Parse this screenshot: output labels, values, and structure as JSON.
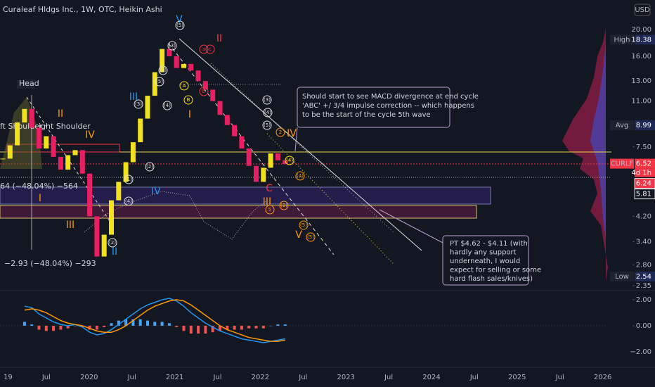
{
  "header": {
    "title": "Curaleaf Hldgs Inc., 1W, OTC, Heikin Ashi",
    "currency": "USD"
  },
  "chart_data": {
    "type": "candlestick",
    "log_scale": true,
    "ylim": [
      2.27,
      25.6
    ],
    "yticks": [
      {
        "value": 20,
        "label": "20.00"
      },
      {
        "value": 16,
        "label": "16.00"
      },
      {
        "value": 13,
        "label": "13.00"
      },
      {
        "value": 11,
        "label": "11.00"
      },
      {
        "value": 7.5,
        "label": "7.50"
      },
      {
        "value": 4.2,
        "label": "4.20"
      },
      {
        "value": 3.4,
        "label": "3.40"
      },
      {
        "value": 2.8,
        "label": "2.80"
      },
      {
        "value": 2.35,
        "label": "2.35"
      }
    ],
    "x_labels": [
      "19",
      "Jul",
      "2020",
      "Jul",
      "2021",
      "Jul",
      "2022",
      "Jul",
      "2023",
      "Jul",
      "2024",
      "Jul",
      "2025",
      "Jul",
      "2026"
    ],
    "closes": [
      6.8,
      7.6,
      9.2,
      10.3,
      8.8,
      7.4,
      8.2,
      6.9,
      6.2,
      7.0,
      7.3,
      6.0,
      4.2,
      3.0,
      3.6,
      4.8,
      5.6,
      6.6,
      7.8,
      9.5,
      11.5,
      14.0,
      17.0,
      16.0,
      14.5,
      15.0,
      14.2,
      13.0,
      12.1,
      11.0,
      9.8,
      9.0,
      8.2,
      7.4,
      6.4,
      5.6,
      6.3,
      7.1,
      6.7,
      6.5
    ],
    "up_color": "#f2e21d",
    "down_color": "#e91e63",
    "price_labels": [
      {
        "name": "High",
        "value": 18.38
      },
      {
        "name": "Avg",
        "value": 8.99
      },
      {
        "name": "CURLF",
        "value": 6.52,
        "countdown": "4d 1h"
      },
      {
        "value": 6.24
      },
      {
        "value": 5.81
      },
      {
        "name": "Low",
        "value": 2.54
      }
    ],
    "macd": {
      "ylim": [
        -3.08,
        2.59
      ],
      "yticks": [
        {
          "value": 2,
          "label": "2.00"
        },
        {
          "value": 0,
          "label": "0.00"
        },
        {
          "value": -2,
          "label": "−2.00"
        }
      ],
      "macd_color": "#2196f3",
      "signal_color": "#ff9800",
      "macd": [
        null,
        null,
        null,
        1.5,
        1.4,
        0.9,
        0.6,
        0.3,
        0.1,
        0.0,
        0.1,
        -0.1,
        -0.5,
        -0.7,
        -0.6,
        -0.3,
        0.1,
        0.5,
        0.9,
        1.3,
        1.6,
        1.8,
        2.0,
        2.1,
        1.9,
        1.5,
        1.0,
        0.6,
        0.2,
        -0.1,
        -0.4,
        -0.6,
        -0.8,
        -1.0,
        -1.1,
        -1.2,
        -1.3,
        -1.2,
        -1.1,
        -1.0
      ],
      "signal": [
        null,
        null,
        null,
        1.2,
        1.3,
        1.2,
        1.0,
        0.7,
        0.4,
        0.2,
        0.1,
        0.0,
        -0.2,
        -0.4,
        -0.5,
        -0.5,
        -0.3,
        0.0,
        0.4,
        0.8,
        1.2,
        1.5,
        1.7,
        1.9,
        2.0,
        1.9,
        1.6,
        1.2,
        0.8,
        0.4,
        0.0,
        -0.3,
        -0.5,
        -0.7,
        -0.9,
        -1.0,
        -1.1,
        -1.2,
        -1.2,
        -1.1
      ],
      "histogram": [
        null,
        null,
        null,
        0.3,
        0.1,
        -0.3,
        -0.4,
        -0.4,
        -0.3,
        -0.2,
        0.0,
        -0.1,
        -0.3,
        -0.3,
        -0.1,
        0.2,
        0.4,
        0.5,
        0.5,
        0.5,
        0.4,
        0.3,
        0.3,
        0.2,
        -0.1,
        -0.4,
        -0.6,
        -0.6,
        -0.6,
        -0.5,
        -0.4,
        -0.3,
        -0.3,
        -0.3,
        -0.2,
        -0.2,
        -0.2,
        0.0,
        0.1,
        0.1
      ]
    }
  },
  "annotations": {
    "head": "Head",
    "left_shoulder": "ft Shoulder",
    "right_shoulder": "ight Shoulder",
    "measure_top": "64 (−48.04%) −564",
    "measure_bottom": "−2.93 (−48.04%) −293",
    "note_1": [
      "Should start to see MACD divergence at end cycle",
      "'ABC' +/ 3/4 impulse correction -- which happens",
      "to be the start of the cycle 5th wave"
    ],
    "note_2": [
      "PT $4.62 - $4.11 (with",
      "hardly any support",
      "underneath, I would",
      "expect for selling or some",
      "hard flash sales/knives)"
    ],
    "wave_labels": [
      {
        "text": "V",
        "color": "#2196f3"
      },
      {
        "text": "(5)",
        "color": "#e0e0e0"
      },
      {
        "text": "II",
        "color": "#f23645"
      },
      {
        "text": "III",
        "color": "#2196f3"
      },
      {
        "text": "IV",
        "color": "#ff9800"
      },
      {
        "text": "II",
        "color": "#ff9800"
      },
      {
        "text": "I",
        "color": "#ff9800"
      },
      {
        "text": "III",
        "color": "#ff9800"
      },
      {
        "text": "IV",
        "color": "#2196f3"
      },
      {
        "text": "II",
        "color": "#2196f3"
      },
      {
        "text": "IV",
        "color": "#ff9800"
      },
      {
        "text": "V",
        "color": "#ff9800"
      },
      {
        "text": "III",
        "color": "#ff9800"
      },
      {
        "text": "C",
        "color": "#f23645"
      },
      {
        "text": "I",
        "color": "#ff9800"
      },
      {
        "text": "(3)",
        "color": "#e0e0e0"
      },
      {
        "text": "(1)",
        "color": "#e0e0e0"
      },
      {
        "text": "(5)",
        "color": "#e0e0e0"
      },
      {
        "text": "(4)",
        "color": "#e0e0e0"
      },
      {
        "text": "(2)",
        "color": "#e0e0e0"
      },
      {
        "text": "(3)",
        "color": "#e0e0e0"
      },
      {
        "text": "(1)",
        "color": "#e0e0e0"
      },
      {
        "text": "(4)",
        "color": "#e0e0e0"
      },
      {
        "text": "(2)",
        "color": "#e0e0e0"
      },
      {
        "text": "A",
        "color": "#ffe600"
      },
      {
        "text": "B",
        "color": "#ffe600"
      },
      {
        "text": "a",
        "color": "#f23645"
      },
      {
        "text": "c",
        "color": "#f23645"
      },
      {
        "text": "b",
        "color": "#f23645"
      },
      {
        "text": "(3)",
        "color": "#e0e0e0"
      },
      {
        "text": "(4)",
        "color": "#e0e0e0"
      },
      {
        "text": "(5)",
        "color": "#e0e0e0"
      },
      {
        "text": "2",
        "color": "#ff9800"
      },
      {
        "text": "(4)",
        "color": "#ffe600"
      },
      {
        "text": "(4)",
        "color": "#ff9800"
      },
      {
        "text": "(5)",
        "color": "#ff9800"
      },
      {
        "text": "(5)",
        "color": "#ff9800"
      },
      {
        "text": "(3)",
        "color": "#ff9800"
      },
      {
        "text": "5",
        "color": "#ff9800"
      }
    ]
  }
}
